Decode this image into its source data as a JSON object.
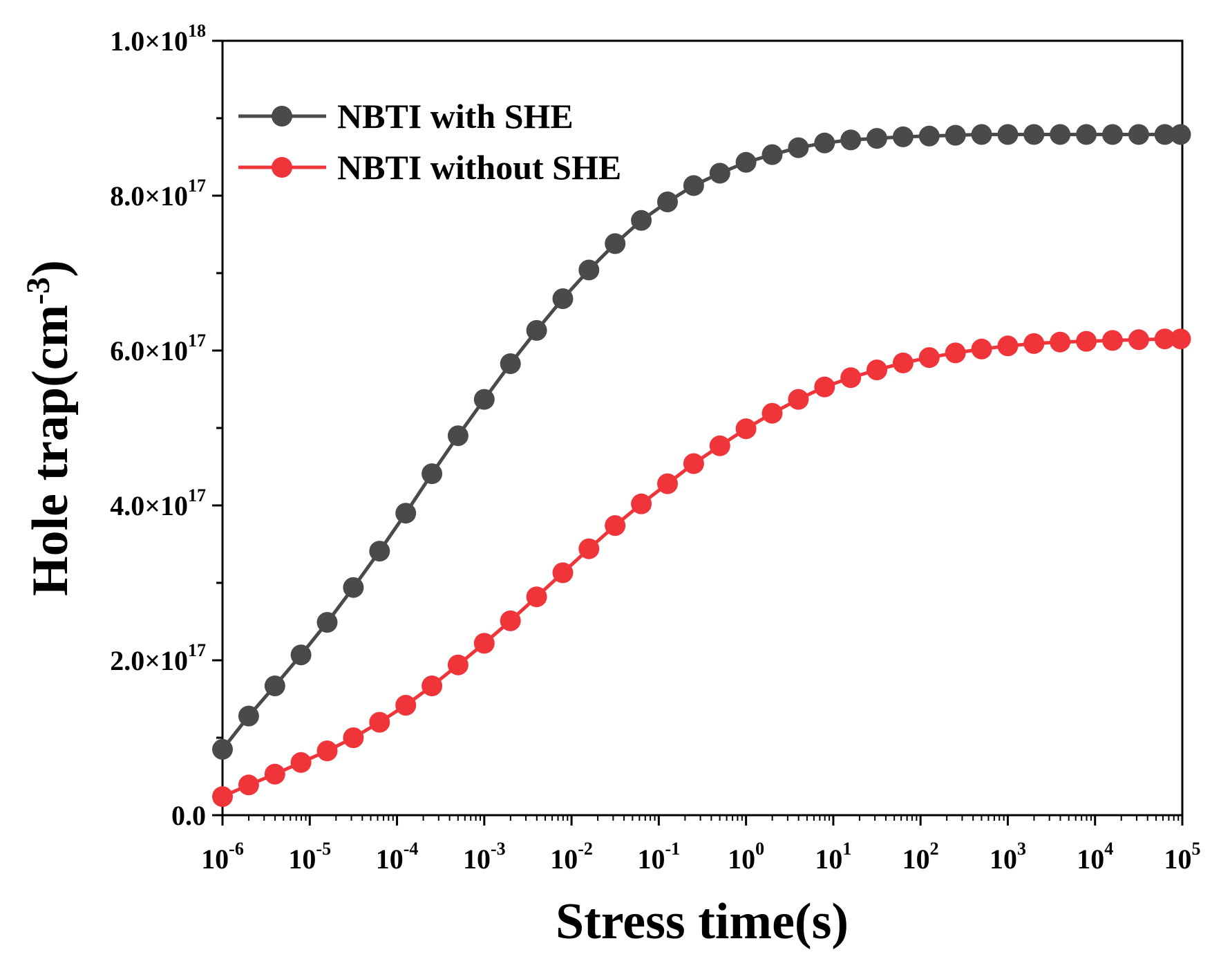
{
  "chart_data": {
    "type": "line",
    "title": "",
    "xlabel": "Stress time(s)",
    "ylabel_base": "Hole trap(cm",
    "ylabel_sup": "-3",
    "ylabel_close": ")",
    "xscale": "log",
    "xlim_log10": [
      -6,
      5
    ],
    "ylim": [
      0,
      1e+18
    ],
    "grid": false,
    "legend_position": "top-left",
    "x_ticks": [
      {
        "base": "10",
        "exp": "-6"
      },
      {
        "base": "10",
        "exp": "-5"
      },
      {
        "base": "10",
        "exp": "-4"
      },
      {
        "base": "10",
        "exp": "-3"
      },
      {
        "base": "10",
        "exp": "-2"
      },
      {
        "base": "10",
        "exp": "-1"
      },
      {
        "base": "10",
        "exp": "0"
      },
      {
        "base": "10",
        "exp": "1"
      },
      {
        "base": "10",
        "exp": "2"
      },
      {
        "base": "10",
        "exp": "3"
      },
      {
        "base": "10",
        "exp": "4"
      },
      {
        "base": "10",
        "exp": "5"
      }
    ],
    "y_ticks": [
      {
        "value": 0,
        "base": "0.0",
        "exp": ""
      },
      {
        "value": 2e+17,
        "base": "2.0×10",
        "exp": "17"
      },
      {
        "value": 4e+17,
        "base": "4.0×10",
        "exp": "17"
      },
      {
        "value": 6e+17,
        "base": "6.0×10",
        "exp": "17"
      },
      {
        "value": 8e+17,
        "base": "8.0×10",
        "exp": "17"
      },
      {
        "value": 1e+18,
        "base": "1.0×10",
        "exp": "18"
      }
    ],
    "y_minor_ticks": [
      1e+17,
      3e+17,
      5e+17,
      7e+17,
      9e+17
    ],
    "series": [
      {
        "name": "NBTI with SHE",
        "color": "#4a4a4a",
        "x_log10": [
          -6.0,
          -5.7,
          -5.4,
          -5.1,
          -4.8,
          -4.5,
          -4.2,
          -3.9,
          -3.6,
          -3.3,
          -3.0,
          -2.7,
          -2.4,
          -2.1,
          -1.8,
          -1.5,
          -1.2,
          -0.9,
          -0.6,
          -0.3,
          0.0,
          0.3,
          0.6,
          0.9,
          1.2,
          1.5,
          1.8,
          2.1,
          2.4,
          2.7,
          3.0,
          3.3,
          3.6,
          3.9,
          4.2,
          4.5,
          4.8,
          4.98
        ],
        "values": [
          8.5e+16,
          1.28e+17,
          1.67e+17,
          2.07e+17,
          2.49e+17,
          2.94e+17,
          3.41e+17,
          3.9e+17,
          4.41e+17,
          4.9e+17,
          5.37e+17,
          5.83e+17,
          6.26e+17,
          6.67e+17,
          7.04e+17,
          7.38e+17,
          7.68e+17,
          7.92e+17,
          8.13e+17,
          8.29e+17,
          8.43e+17,
          8.53e+17,
          8.62e+17,
          8.68e+17,
          8.72e+17,
          8.74e+17,
          8.76e+17,
          8.77e+17,
          8.78e+17,
          8.79e+17,
          8.79e+17,
          8.79e+17,
          8.79e+17,
          8.79e+17,
          8.79e+17,
          8.79e+17,
          8.79e+17,
          8.79e+17
        ]
      },
      {
        "name": "NBTI without SHE",
        "color": "#f0353a",
        "x_log10": [
          -6.0,
          -5.7,
          -5.4,
          -5.1,
          -4.8,
          -4.5,
          -4.2,
          -3.9,
          -3.6,
          -3.3,
          -3.0,
          -2.7,
          -2.4,
          -2.1,
          -1.8,
          -1.5,
          -1.2,
          -0.9,
          -0.6,
          -0.3,
          0.0,
          0.3,
          0.6,
          0.9,
          1.2,
          1.5,
          1.8,
          2.1,
          2.4,
          2.7,
          3.0,
          3.3,
          3.6,
          3.9,
          4.2,
          4.5,
          4.8,
          4.98
        ],
        "values": [
          2.4e+16,
          3.9e+16,
          5.3e+16,
          6.8e+16,
          8.3e+16,
          1e+17,
          1.2e+17,
          1.42e+17,
          1.67e+17,
          1.94e+17,
          2.22e+17,
          2.51e+17,
          2.82e+17,
          3.13e+17,
          3.44e+17,
          3.74e+17,
          4.02e+17,
          4.28e+17,
          4.54e+17,
          4.77e+17,
          4.99e+17,
          5.19e+17,
          5.37e+17,
          5.53e+17,
          5.65e+17,
          5.75e+17,
          5.84e+17,
          5.91e+17,
          5.97e+17,
          6.02e+17,
          6.06e+17,
          6.09e+17,
          6.11e+17,
          6.12e+17,
          6.13e+17,
          6.14e+17,
          6.15e+17,
          6.15e+17
        ]
      }
    ]
  }
}
